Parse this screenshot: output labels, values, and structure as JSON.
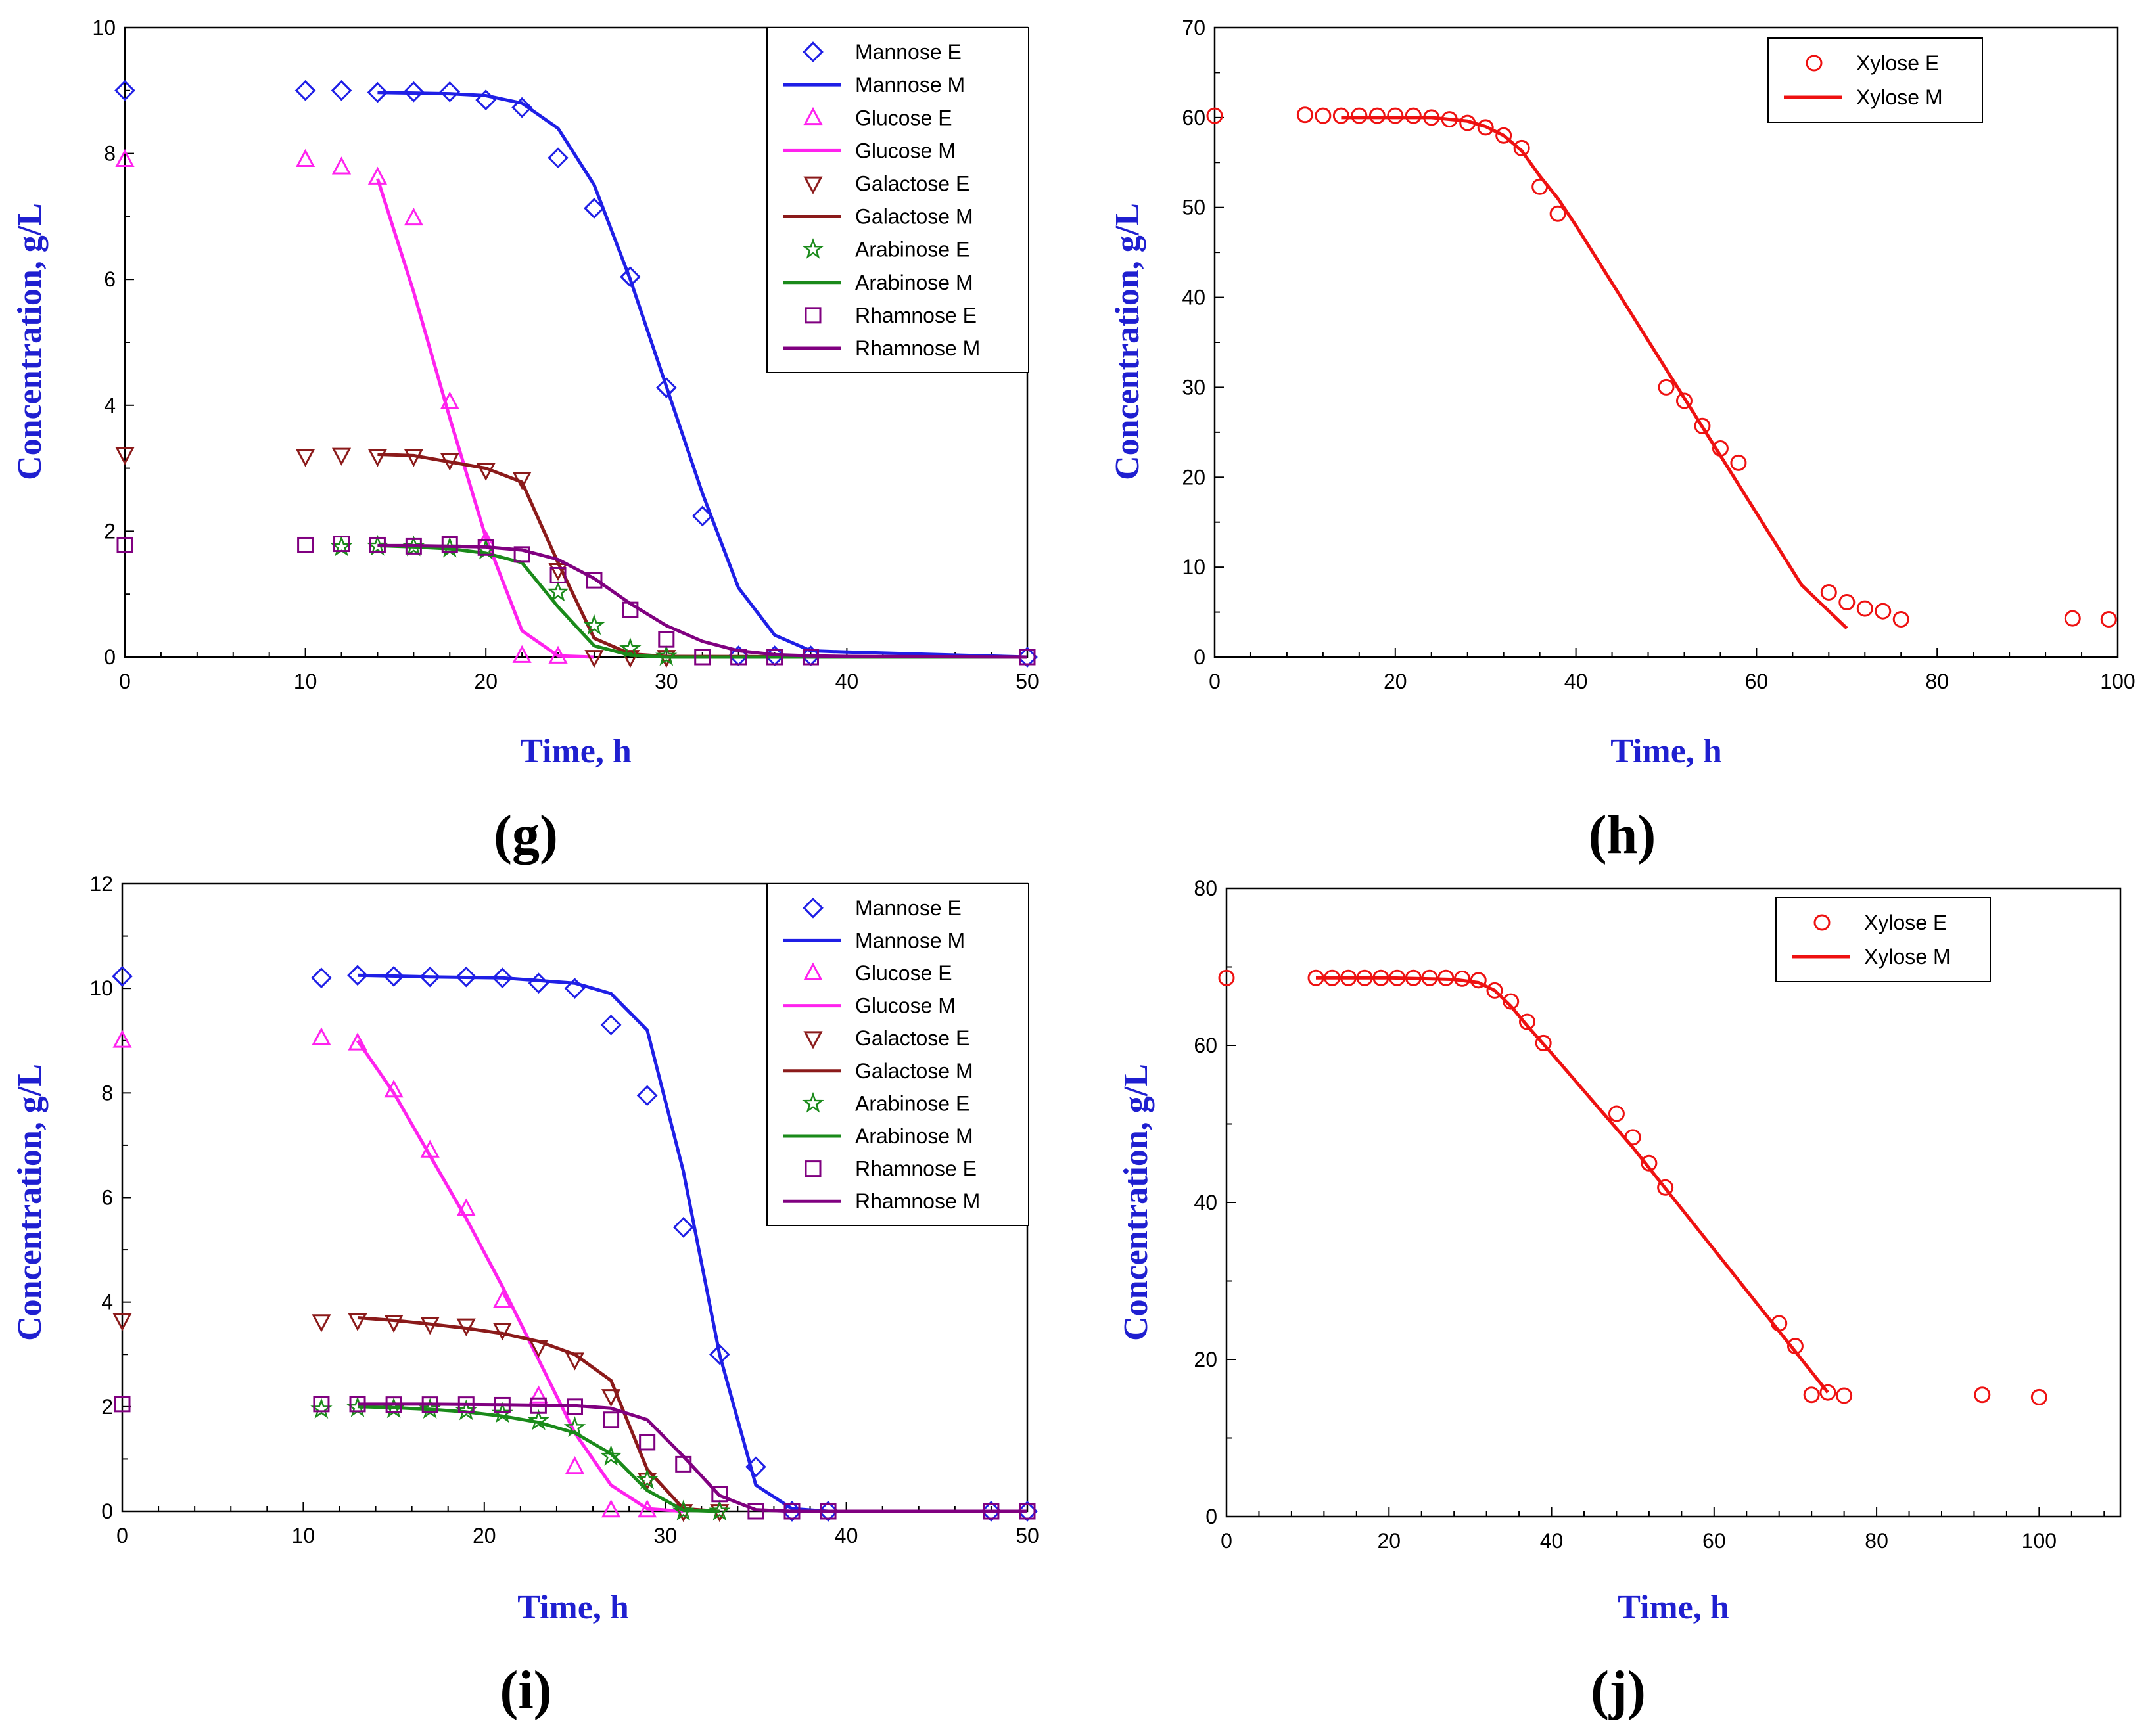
{
  "chart_data": [
    {
      "type": "line",
      "panel": "g",
      "panel_label": "(g)",
      "xlabel": "Time, h",
      "ylabel": "Concentration, g/L",
      "xlim": [
        0,
        50
      ],
      "ylim": [
        0,
        10
      ],
      "xticks": [
        0,
        10,
        20,
        30,
        40,
        50
      ],
      "yticks": [
        0,
        2,
        4,
        6,
        8,
        10
      ],
      "legend_position": "top-right",
      "series": [
        {
          "name": "Mannose E",
          "kind": "marker",
          "marker": "diamond",
          "color": "#1f1fe6",
          "x": [
            0,
            10,
            12,
            14,
            16,
            18,
            20,
            22,
            24,
            26,
            28,
            30,
            32,
            34,
            36,
            38,
            50
          ],
          "y": [
            9.0,
            9.0,
            9.0,
            8.97,
            8.98,
            8.98,
            8.85,
            8.73,
            7.93,
            7.13,
            6.04,
            4.28,
            2.24,
            0.02,
            0.02,
            0.02,
            0.0
          ]
        },
        {
          "name": "Mannose M",
          "kind": "line",
          "color": "#1f1fe6",
          "x": [
            14,
            16,
            18,
            20,
            22,
            24,
            26,
            28,
            30,
            32,
            34,
            36,
            38,
            40,
            50
          ],
          "y": [
            8.97,
            8.96,
            8.95,
            8.92,
            8.8,
            8.4,
            7.5,
            6.0,
            4.3,
            2.6,
            1.1,
            0.35,
            0.1,
            0.08,
            0.0
          ]
        },
        {
          "name": "Glucose E",
          "kind": "marker",
          "marker": "triangle-up",
          "color": "#ff22ee",
          "x": [
            0,
            10,
            12,
            14,
            16,
            18,
            20,
            22,
            24
          ],
          "y": [
            7.9,
            7.9,
            7.78,
            7.62,
            6.97,
            4.05,
            1.85,
            0.02,
            0.01
          ]
        },
        {
          "name": "Glucose M",
          "kind": "line",
          "color": "#ff22ee",
          "x": [
            14,
            16,
            18,
            20,
            22,
            24,
            26
          ],
          "y": [
            7.6,
            5.8,
            3.8,
            1.9,
            0.42,
            0.02,
            0.0
          ]
        },
        {
          "name": "Galactose E",
          "kind": "marker",
          "marker": "triangle-down",
          "color": "#8b1a1a",
          "x": [
            0,
            10,
            12,
            14,
            16,
            18,
            20,
            22,
            24,
            26,
            28,
            30
          ],
          "y": [
            3.22,
            3.19,
            3.21,
            3.19,
            3.19,
            3.13,
            2.97,
            2.83,
            1.38,
            0.0,
            0.0,
            0.0
          ]
        },
        {
          "name": "Galactose M",
          "kind": "line",
          "color": "#8b1a1a",
          "x": [
            14,
            16,
            18,
            20,
            22,
            24,
            26,
            28,
            30,
            50
          ],
          "y": [
            3.22,
            3.2,
            3.1,
            3.0,
            2.78,
            1.5,
            0.3,
            0.05,
            0.01,
            0.0
          ]
        },
        {
          "name": "Arabinose E",
          "kind": "marker",
          "marker": "star",
          "color": "#1a8a1a",
          "x": [
            12,
            14,
            16,
            18,
            20,
            24,
            26,
            28,
            30
          ],
          "y": [
            1.75,
            1.76,
            1.75,
            1.73,
            1.7,
            1.03,
            0.5,
            0.13,
            0.01
          ]
        },
        {
          "name": "Arabinose M",
          "kind": "line",
          "color": "#1a8a1a",
          "x": [
            14,
            16,
            18,
            20,
            22,
            24,
            26,
            28,
            30,
            50
          ],
          "y": [
            1.77,
            1.75,
            1.72,
            1.65,
            1.5,
            0.8,
            0.18,
            0.03,
            0.0,
            0.0
          ]
        },
        {
          "name": "Rhamnose E",
          "kind": "marker",
          "marker": "square",
          "color": "#800080",
          "x": [
            0,
            10,
            12,
            14,
            16,
            18,
            20,
            22,
            24,
            26,
            28,
            30,
            32,
            34,
            36,
            38,
            50
          ],
          "y": [
            1.78,
            1.78,
            1.8,
            1.78,
            1.76,
            1.79,
            1.74,
            1.63,
            1.3,
            1.22,
            0.75,
            0.28,
            0.0,
            0.0,
            0.0,
            0.0,
            0.0
          ]
        },
        {
          "name": "Rhamnose M",
          "kind": "line",
          "color": "#800080",
          "x": [
            14,
            16,
            18,
            20,
            22,
            24,
            26,
            28,
            30,
            32,
            34,
            36,
            38,
            40,
            50
          ],
          "y": [
            1.77,
            1.77,
            1.76,
            1.75,
            1.7,
            1.55,
            1.25,
            0.85,
            0.5,
            0.25,
            0.1,
            0.04,
            0.02,
            0.01,
            0.0
          ]
        }
      ]
    },
    {
      "type": "line",
      "panel": "h",
      "panel_label": "(h)",
      "xlabel": "Time, h",
      "ylabel": "Concentration, g/L",
      "xlim": [
        0,
        100
      ],
      "ylim": [
        0,
        70
      ],
      "xticks": [
        0,
        20,
        40,
        60,
        80,
        100
      ],
      "yticks": [
        0,
        10,
        20,
        30,
        40,
        50,
        60,
        70
      ],
      "legend_position": "top-right",
      "series": [
        {
          "name": "Xylose E",
          "kind": "marker",
          "marker": "circle",
          "color": "#ee1111",
          "x": [
            0,
            10,
            12,
            14,
            16,
            18,
            20,
            22,
            24,
            26,
            28,
            30,
            32,
            34,
            36,
            38,
            50,
            52,
            54,
            56,
            58,
            68,
            70,
            72,
            74,
            76,
            95,
            99
          ],
          "y": [
            60.2,
            60.3,
            60.2,
            60.2,
            60.2,
            60.2,
            60.2,
            60.2,
            60.0,
            59.8,
            59.4,
            58.9,
            58.0,
            56.6,
            52.3,
            49.3,
            30.0,
            28.5,
            25.7,
            23.2,
            21.6,
            7.2,
            6.1,
            5.4,
            5.1,
            4.2,
            4.3,
            4.2
          ]
        },
        {
          "name": "Xylose M",
          "kind": "line",
          "color": "#ee1111",
          "x": [
            14,
            20,
            24,
            28,
            30,
            32,
            34,
            36,
            38,
            40,
            45,
            50,
            55,
            60,
            65,
            70
          ],
          "y": [
            60.0,
            60.0,
            60.0,
            59.6,
            59.0,
            58.0,
            56.3,
            53.5,
            51.0,
            48.0,
            40.0,
            32.0,
            24.0,
            16.0,
            8.0,
            3.2
          ]
        }
      ]
    },
    {
      "type": "line",
      "panel": "i",
      "panel_label": "(i)",
      "xlabel": "Time, h",
      "ylabel": "Concentration, g/L",
      "xlim": [
        0,
        50
      ],
      "ylim": [
        0,
        12
      ],
      "xticks": [
        0,
        10,
        20,
        30,
        40,
        50
      ],
      "yticks": [
        0,
        2,
        4,
        6,
        8,
        10,
        12
      ],
      "legend_position": "top-right",
      "series": [
        {
          "name": "Mannose E",
          "kind": "marker",
          "marker": "diamond",
          "color": "#1f1fe6",
          "x": [
            0,
            11,
            13,
            15,
            17,
            19,
            21,
            23,
            25,
            27,
            29,
            31,
            33,
            35,
            37,
            39,
            48,
            50
          ],
          "y": [
            10.23,
            10.2,
            10.25,
            10.23,
            10.22,
            10.22,
            10.2,
            10.1,
            10.0,
            9.3,
            7.95,
            5.43,
            3.0,
            0.85,
            0.0,
            0.0,
            0.0,
            0.0
          ]
        },
        {
          "name": "Mannose M",
          "kind": "line",
          "color": "#1f1fe6",
          "x": [
            13,
            17,
            21,
            25,
            27,
            29,
            31,
            33,
            35,
            37,
            39,
            48,
            50
          ],
          "y": [
            10.25,
            10.22,
            10.2,
            10.1,
            9.9,
            9.2,
            6.5,
            3.0,
            0.5,
            0.05,
            0.0,
            0.0,
            0.0
          ]
        },
        {
          "name": "Glucose E",
          "kind": "marker",
          "marker": "triangle-up",
          "color": "#ff22ee",
          "x": [
            0,
            11,
            13,
            15,
            17,
            19,
            21,
            23,
            25,
            27,
            29
          ],
          "y": [
            9.0,
            9.05,
            8.95,
            8.05,
            6.9,
            5.78,
            4.02,
            2.2,
            0.85,
            0.02,
            0.02
          ]
        },
        {
          "name": "Glucose M",
          "kind": "line",
          "color": "#ff22ee",
          "x": [
            13,
            15,
            17,
            19,
            21,
            23,
            25,
            27,
            29,
            31
          ],
          "y": [
            9.0,
            8.0,
            6.8,
            5.6,
            4.3,
            2.9,
            1.5,
            0.5,
            0.05,
            0.0
          ]
        },
        {
          "name": "Galactose E",
          "kind": "marker",
          "marker": "triangle-down",
          "color": "#8b1a1a",
          "x": [
            0,
            11,
            13,
            15,
            17,
            19,
            21,
            23,
            25,
            27,
            29,
            31,
            33
          ],
          "y": [
            3.65,
            3.63,
            3.65,
            3.62,
            3.58,
            3.55,
            3.47,
            3.14,
            2.9,
            2.2,
            0.6,
            0.0,
            0.0
          ]
        },
        {
          "name": "Galactose M",
          "kind": "line",
          "color": "#8b1a1a",
          "x": [
            13,
            15,
            17,
            19,
            21,
            23,
            25,
            27,
            29,
            31,
            33
          ],
          "y": [
            3.7,
            3.65,
            3.58,
            3.5,
            3.4,
            3.25,
            3.0,
            2.5,
            0.8,
            0.05,
            0.0
          ]
        },
        {
          "name": "Arabinose E",
          "kind": "marker",
          "marker": "star",
          "color": "#1a8a1a",
          "x": [
            11,
            13,
            15,
            17,
            19,
            21,
            23,
            25,
            27,
            29,
            31,
            33
          ],
          "y": [
            1.95,
            1.98,
            1.96,
            1.95,
            1.92,
            1.87,
            1.73,
            1.6,
            1.05,
            0.6,
            0.0,
            0.0
          ]
        },
        {
          "name": "Arabinose M",
          "kind": "line",
          "color": "#1a8a1a",
          "x": [
            13,
            15,
            17,
            19,
            21,
            23,
            25,
            27,
            29,
            31,
            33
          ],
          "y": [
            2.0,
            1.98,
            1.95,
            1.9,
            1.82,
            1.7,
            1.5,
            1.1,
            0.4,
            0.02,
            0.0
          ]
        },
        {
          "name": "Rhamnose E",
          "kind": "marker",
          "marker": "square",
          "color": "#800080",
          "x": [
            0,
            11,
            13,
            15,
            17,
            19,
            21,
            23,
            25,
            27,
            29,
            31,
            33,
            35,
            37,
            39,
            48,
            50
          ],
          "y": [
            2.05,
            2.05,
            2.05,
            2.04,
            2.04,
            2.04,
            2.03,
            2.02,
            2.0,
            1.75,
            1.32,
            0.9,
            0.33,
            0.0,
            0.0,
            0.0,
            0.0,
            0.0
          ]
        },
        {
          "name": "Rhamnose M",
          "kind": "line",
          "color": "#800080",
          "x": [
            13,
            17,
            21,
            25,
            27,
            29,
            31,
            33,
            35,
            37,
            39,
            48,
            50
          ],
          "y": [
            2.05,
            2.05,
            2.04,
            2.02,
            1.97,
            1.75,
            1.05,
            0.3,
            0.03,
            0.0,
            0.0,
            0.0,
            0.0
          ]
        }
      ]
    },
    {
      "type": "line",
      "panel": "j",
      "panel_label": "(j)",
      "xlabel": "Time, h",
      "ylabel": "Concentration, g/L",
      "xlim": [
        0,
        110
      ],
      "ylim": [
        0,
        80
      ],
      "xticks": [
        0,
        20,
        40,
        60,
        80,
        100
      ],
      "yticks": [
        0,
        20,
        40,
        60,
        80
      ],
      "legend_position": "top-right",
      "series": [
        {
          "name": "Xylose E",
          "kind": "marker",
          "marker": "circle",
          "color": "#ee1111",
          "x": [
            0,
            11,
            13,
            15,
            17,
            19,
            21,
            23,
            25,
            27,
            29,
            31,
            33,
            35,
            37,
            39,
            48,
            50,
            52,
            54,
            68,
            70,
            72,
            74,
            76,
            93,
            100
          ],
          "y": [
            68.6,
            68.6,
            68.6,
            68.6,
            68.6,
            68.6,
            68.6,
            68.6,
            68.6,
            68.6,
            68.5,
            68.3,
            67.0,
            65.6,
            63.0,
            60.3,
            51.3,
            48.3,
            45.0,
            41.9,
            24.6,
            21.7,
            15.5,
            15.8,
            15.4,
            15.5,
            15.2
          ]
        },
        {
          "name": "Xylose M",
          "kind": "line",
          "color": "#ee1111",
          "x": [
            11,
            20,
            28,
            31,
            33,
            35,
            37,
            40,
            45,
            50,
            55,
            60,
            65,
            70,
            74
          ],
          "y": [
            68.6,
            68.6,
            68.4,
            68.0,
            67.0,
            65.0,
            62.5,
            59.0,
            53.0,
            47.0,
            40.5,
            34.0,
            27.5,
            21.0,
            15.8
          ]
        }
      ]
    }
  ]
}
